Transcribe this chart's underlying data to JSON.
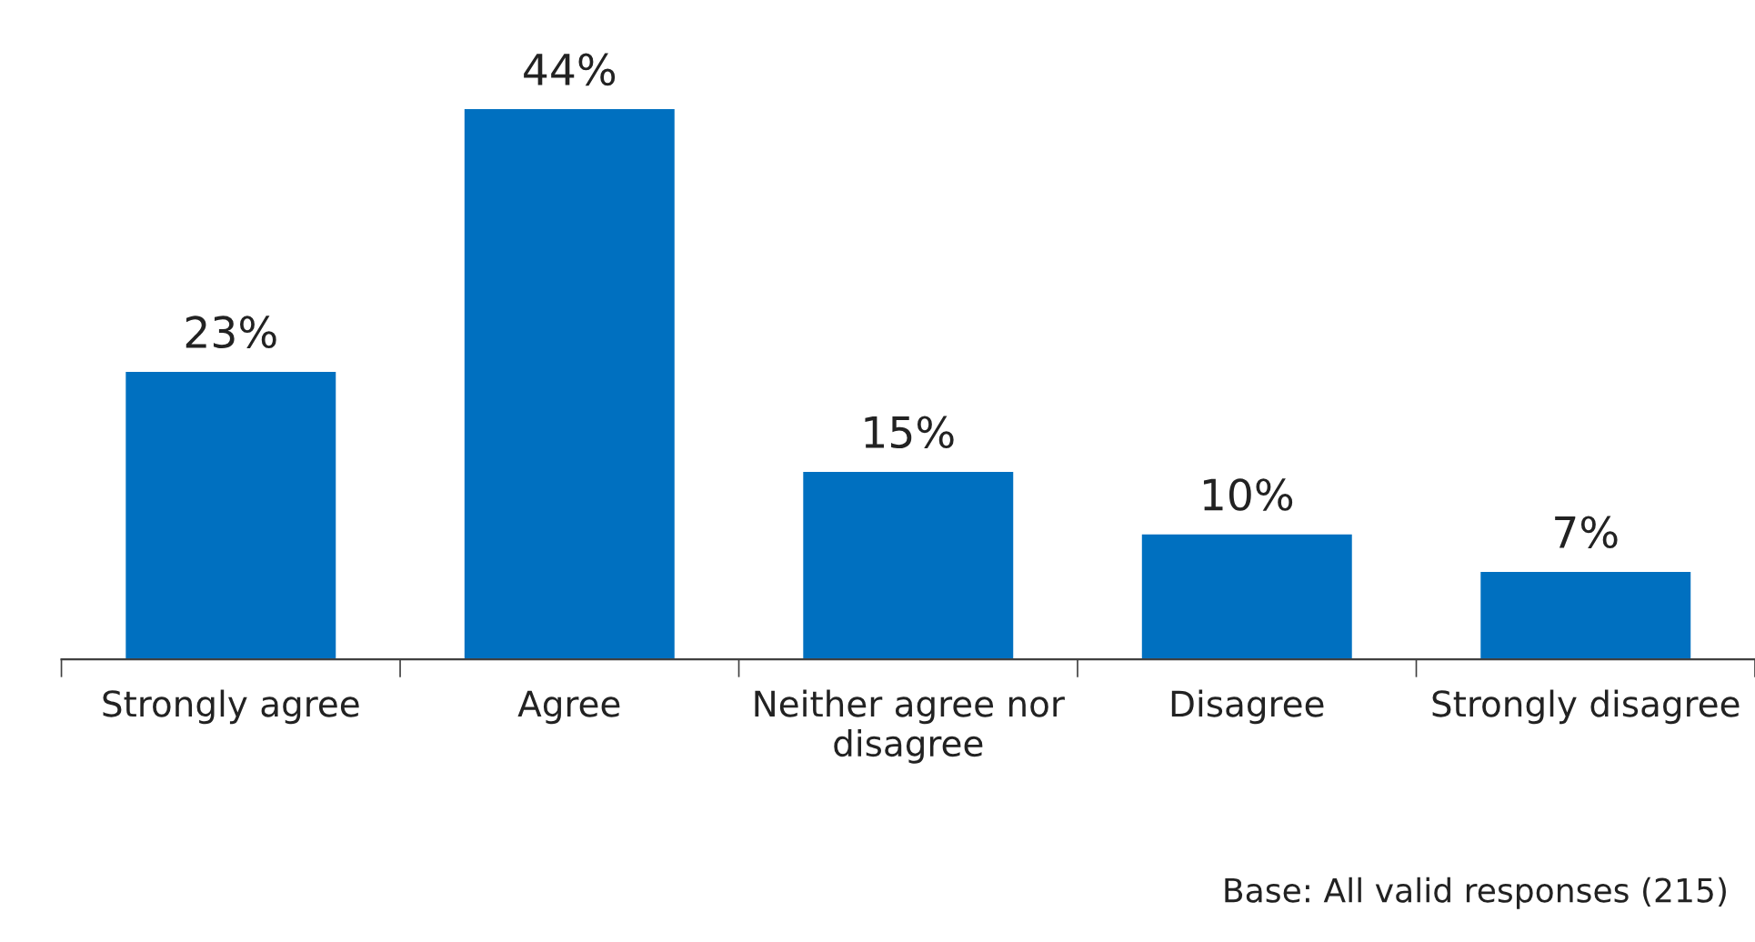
{
  "chart_data": {
    "type": "bar",
    "categories": [
      "Strongly agree",
      "Agree",
      "Neither agree nor\ndisagree",
      "Disagree",
      "Strongly disagree"
    ],
    "values": [
      23,
      44,
      15,
      10,
      7
    ],
    "value_labels": [
      "23%",
      "44%",
      "15%",
      "10%",
      "7%"
    ],
    "color": "#0070c0",
    "grid": false,
    "legend": false,
    "annotations": [
      "Base: All valid responses (215)"
    ]
  }
}
